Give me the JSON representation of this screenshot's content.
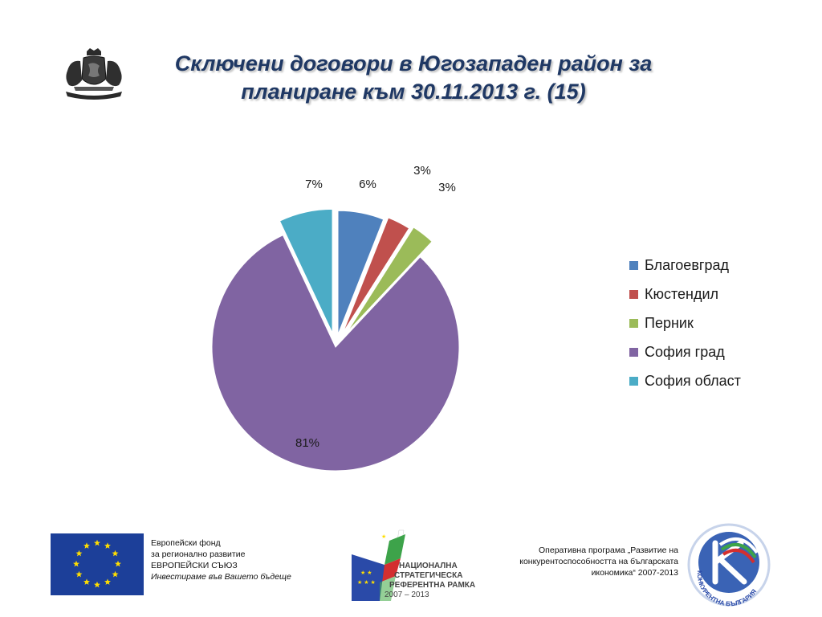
{
  "header": {
    "title_line1": "Сключени договори в Югозападен район за",
    "title_line2": "планиране към 30.11.2013 г. (15)"
  },
  "chart_data": {
    "type": "pie",
    "exploded": true,
    "start": "top",
    "direction": "clockwise",
    "legend_position": "right",
    "categories": [
      "Благоевград",
      "Кюстендил",
      "Перник",
      "София град",
      "София област"
    ],
    "values": [
      6,
      3,
      3,
      81,
      7
    ],
    "labels": [
      "6%",
      "3%",
      "3%",
      "81%",
      "7%"
    ],
    "colors": [
      "#4f81bd",
      "#c0504d",
      "#9bbb59",
      "#8064a2",
      "#4bacc6"
    ]
  },
  "footer": {
    "eu_line1": "Европейски фонд",
    "eu_line2": "за регионално развитие",
    "eu_line3": "ЕВРОПЕЙСКИ СЪЮЗ",
    "eu_line4": "Инвестираме във Вашето бъдеще",
    "nsrf_line1": "НАЦИОНАЛНА",
    "nsrf_line2": "СТРАТЕГИЧЕСКА",
    "nsrf_line3": "РЕФЕРЕНТНА РАМКА",
    "nsrf_line4": "2007 – 2013",
    "op_line1": "Оперативна програма „Развитие на",
    "op_line2": "конкурентоспособността на българската",
    "op_line3": "икономика“ 2007-2013",
    "kb_text": "КОНКУРЕНТНА БЪЛГАРИЯ"
  },
  "icons": [
    "coat-of-arms-icon",
    "eu-flag-icon",
    "nsrf-logo-icon",
    "competitive-bulgaria-logo-icon"
  ]
}
